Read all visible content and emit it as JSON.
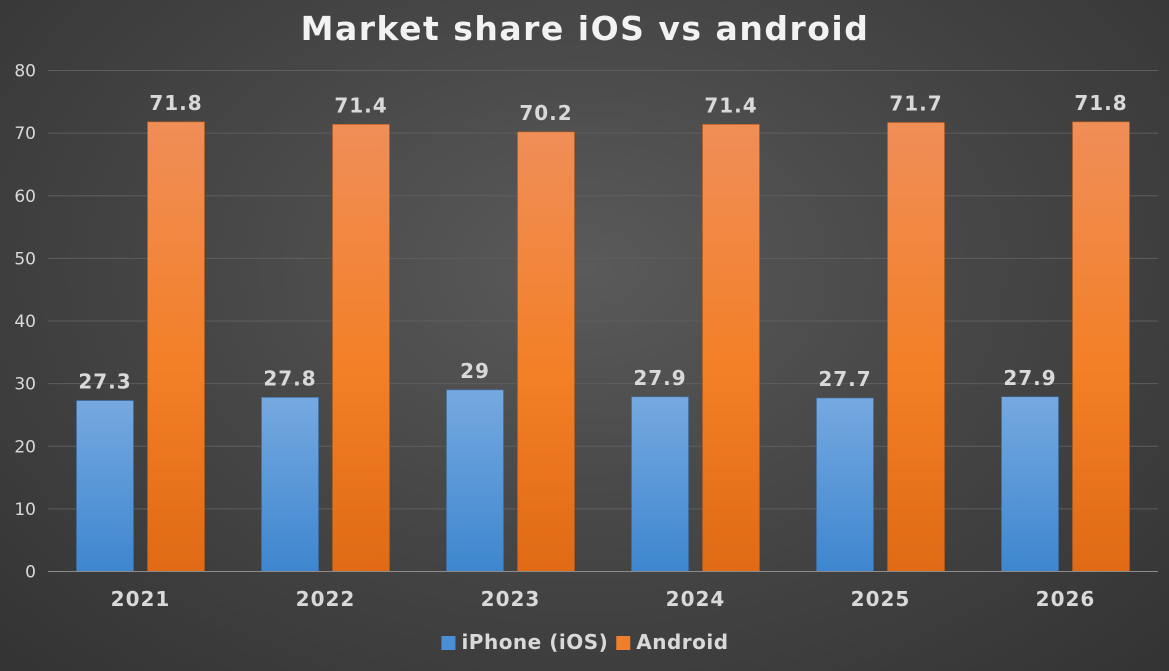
{
  "chart_data": {
    "type": "bar",
    "title": "Market share iOS vs android",
    "xlabel": "",
    "ylabel": "",
    "categories": [
      "2021",
      "2022",
      "2023",
      "2024",
      "2025",
      "2026"
    ],
    "series": [
      {
        "name": "iPhone (iOS)",
        "color": "#4a8fd6",
        "values": [
          27.3,
          27.8,
          29,
          27.9,
          27.7,
          27.9
        ]
      },
      {
        "name": "Android",
        "color": "#ef7f2a",
        "values": [
          71.8,
          71.4,
          70.2,
          71.4,
          71.7,
          71.8
        ]
      }
    ],
    "ylim": [
      0,
      80
    ],
    "yticks": [
      0,
      10,
      20,
      30,
      40,
      50,
      60,
      70,
      80
    ],
    "grid": true,
    "data_labels": true,
    "legend_position": "bottom"
  }
}
